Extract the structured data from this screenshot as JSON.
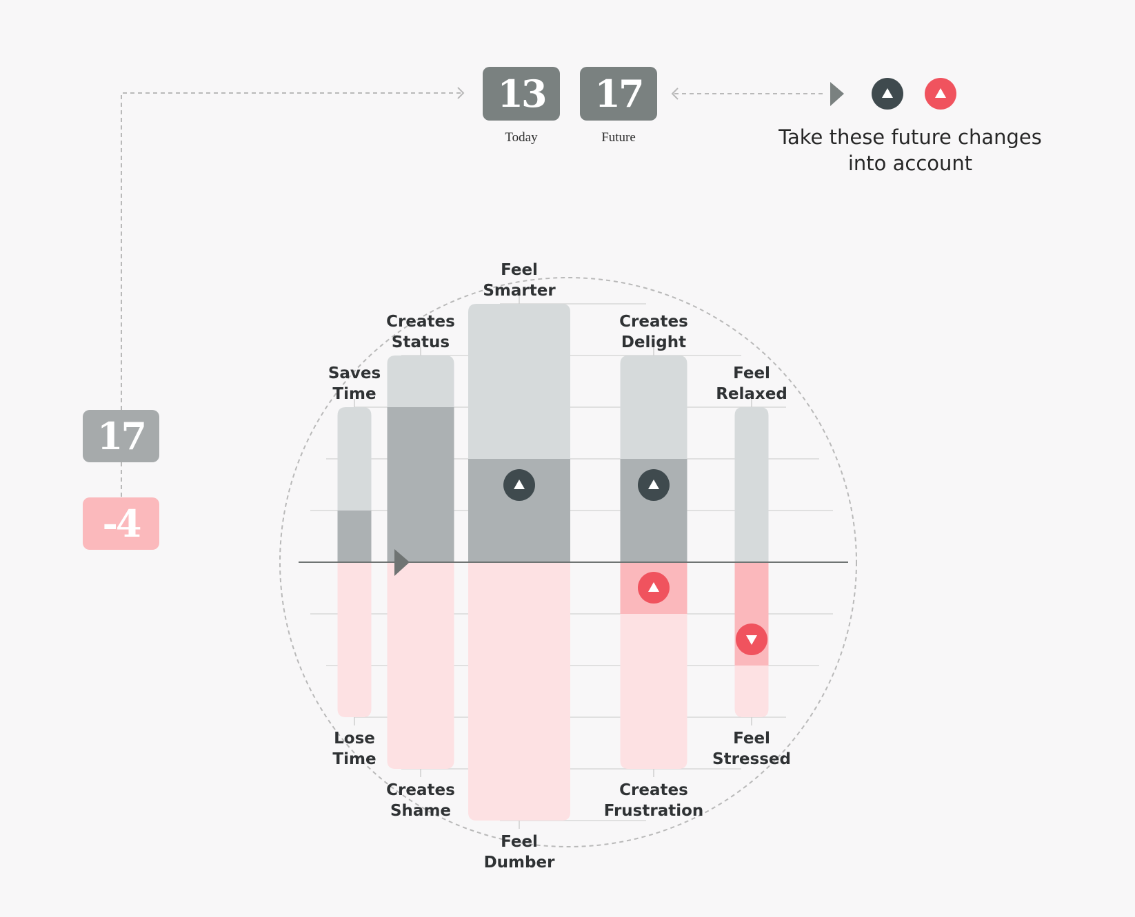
{
  "scores": {
    "today": {
      "value": "13",
      "label": "Today"
    },
    "future": {
      "value": "17",
      "label": "Future"
    },
    "total": "17",
    "delta": "-4"
  },
  "legend": {
    "text_line1": "Take these future changes",
    "text_line2": "into account",
    "icons": [
      "triangle-up-dark-icon",
      "triangle-up-red-icon"
    ]
  },
  "colors": {
    "gain": "#3f4a4e",
    "loss": "#f0535e",
    "box": "#7a8180",
    "box_light": "#a6aaab",
    "box_pink": "#fbb9bc"
  },
  "chart_data": {
    "type": "bar",
    "baseline": 0,
    "ylim": [
      -5,
      5
    ],
    "pairs": [
      {
        "positive": [
          "Saves",
          "Time"
        ],
        "negative": [
          "Lose",
          "Time"
        ],
        "max_pos": 3,
        "max_neg": 3,
        "current": 1,
        "marker": null
      },
      {
        "positive": [
          "Creates",
          "Status"
        ],
        "negative": [
          "Creates",
          "Shame"
        ],
        "max_pos": 4,
        "max_neg": 4,
        "current": 3,
        "marker": null
      },
      {
        "positive": [
          "Feel",
          "Smarter"
        ],
        "negative": [
          "Feel",
          "Dumber"
        ],
        "max_pos": 5,
        "max_neg": 5,
        "current": 2,
        "marker": {
          "type": "up",
          "color": "gain"
        }
      },
      {
        "positive": [
          "Creates",
          "Delight"
        ],
        "negative": [
          "Creates",
          "Frustration"
        ],
        "max_pos": 4,
        "max_neg": 4,
        "current": 2,
        "negative_current": -1,
        "marker": {
          "type": "up",
          "color": "gain"
        },
        "loss_marker": {
          "type": "up",
          "color": "loss"
        }
      },
      {
        "positive": [
          "Feel",
          "Relaxed"
        ],
        "negative": [
          "Feel",
          "Stressed"
        ],
        "max_pos": 3,
        "max_neg": 3,
        "current": 0,
        "negative_current": -2,
        "loss_marker": {
          "type": "down",
          "color": "loss"
        }
      }
    ]
  }
}
